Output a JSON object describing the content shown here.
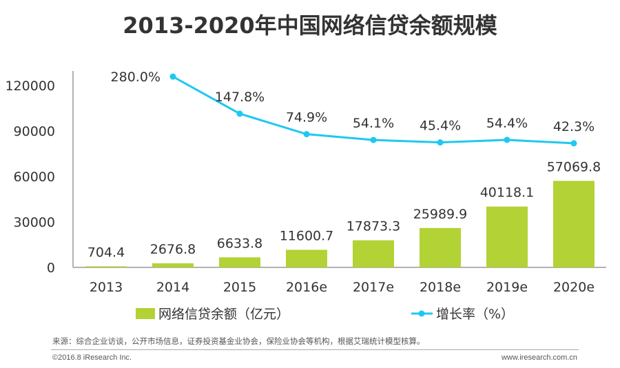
{
  "chart_data": {
    "type": "bar",
    "title": "2013-2020年中国网络信贷余额规模",
    "categories": [
      "2013",
      "2014",
      "2015",
      "2016e",
      "2017e",
      "2018e",
      "2019e",
      "2020e"
    ],
    "series": [
      {
        "name": "网络信贷余额（亿元）",
        "type": "bar",
        "axis": "left",
        "color": "#b2d235",
        "values": [
          704.4,
          2676.8,
          6633.8,
          11600.7,
          17873.3,
          25989.9,
          40118.1,
          57069.8
        ],
        "labels": [
          "704.4",
          "2676.8",
          "6633.8",
          "11600.7",
          "17873.3",
          "25989.9",
          "40118.1",
          "57069.8"
        ]
      },
      {
        "name": "增长率（%）",
        "type": "line",
        "axis": "secondary-hidden",
        "color": "#1ec8f0",
        "x": [
          "2014",
          "2015",
          "2016e",
          "2017e",
          "2018e",
          "2019e",
          "2020e"
        ],
        "values": [
          280.0,
          147.8,
          74.9,
          54.1,
          45.4,
          54.4,
          42.3
        ],
        "labels": [
          "280.0%",
          "147.8%",
          "74.9%",
          "54.1%",
          "45.4%",
          "54.4%",
          "42.3%"
        ]
      }
    ],
    "ylim": [
      0,
      120000
    ],
    "y2lim": [
      -400,
      300
    ],
    "yticks": [
      "0",
      "30000",
      "60000",
      "90000",
      "120000"
    ],
    "grid": false,
    "legend": "bottom"
  },
  "footer": {
    "source": "来源：综合企业访谈，公开市场信息，证券投资基金业协会，保险业协会等机构，根据艾瑞统计模型核算。",
    "copyright": "©2016.8 iResearch Inc.",
    "website": "www.iresearch.com.cn"
  }
}
